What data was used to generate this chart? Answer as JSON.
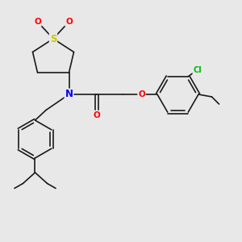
{
  "bg_color": "#e8e8e8",
  "bond_color": "#1a1a1a",
  "bond_width": 1.2,
  "atom_colors": {
    "S": "#c8c800",
    "O": "#ff0000",
    "N": "#0000ff",
    "Cl": "#00bb00",
    "C": "#1a1a1a"
  },
  "font_size": 7.5,
  "figsize": [
    3.0,
    3.0
  ],
  "dpi": 100,
  "xlim": [
    0,
    10
  ],
  "ylim": [
    0,
    10
  ]
}
